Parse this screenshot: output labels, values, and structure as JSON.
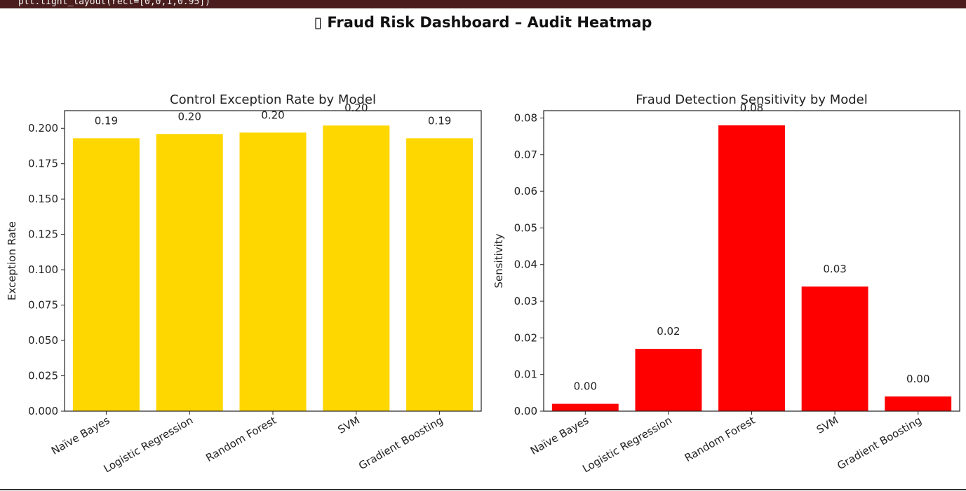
{
  "code_bar": {
    "text": "plt.tight_layout(rect=[0,0,1,0.95])"
  },
  "figure": {
    "suptitle": "▯ Fraud Risk Dashboard – Audit Heatmap"
  },
  "chart_data": [
    {
      "type": "bar",
      "title": "Control Exception Rate by Model",
      "xlabel": "",
      "ylabel": "Exception Rate",
      "categories": [
        "Naïve Bayes",
        "Logistic Regression",
        "Random Forest",
        "SVM",
        "Gradient Boosting"
      ],
      "values": [
        0.193,
        0.196,
        0.197,
        0.202,
        0.193
      ],
      "data_labels": [
        "0.19",
        "0.20",
        "0.20",
        "0.20",
        "0.19"
      ],
      "ylim": [
        0,
        0.2125
      ],
      "yticks": [
        "0.000",
        "0.025",
        "0.050",
        "0.075",
        "0.100",
        "0.125",
        "0.150",
        "0.175",
        "0.200"
      ],
      "ytick_values": [
        0,
        0.025,
        0.05,
        0.075,
        0.1,
        0.125,
        0.15,
        0.175,
        0.2
      ],
      "color": "#FFD700",
      "grid": false
    },
    {
      "type": "bar",
      "title": "Fraud Detection Sensitivity by Model",
      "xlabel": "",
      "ylabel": "Sensitivity",
      "categories": [
        "Naïve Bayes",
        "Logistic Regression",
        "Random Forest",
        "SVM",
        "Gradient Boosting"
      ],
      "values": [
        0.002,
        0.017,
        0.078,
        0.034,
        0.004
      ],
      "data_labels": [
        "0.00",
        "0.02",
        "0.08",
        "0.03",
        "0.00"
      ],
      "ylim": [
        0,
        0.082
      ],
      "yticks": [
        "0.00",
        "0.01",
        "0.02",
        "0.03",
        "0.04",
        "0.05",
        "0.06",
        "0.07",
        "0.08"
      ],
      "ytick_values": [
        0,
        0.01,
        0.02,
        0.03,
        0.04,
        0.05,
        0.06,
        0.07,
        0.08
      ],
      "color": "#FF0000",
      "grid": false
    }
  ]
}
